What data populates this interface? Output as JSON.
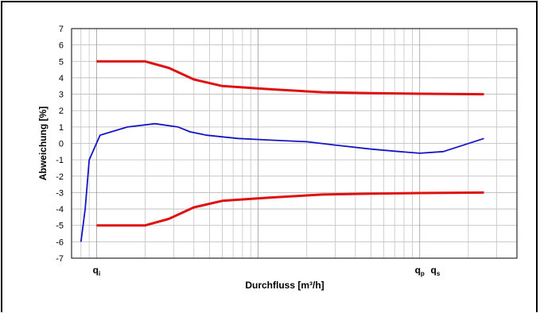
{
  "chart_data": {
    "type": "line",
    "title": "",
    "xlabel": "Durchfluss [m³/h]",
    "ylabel": "Abweichung [%]",
    "x_scale": "log",
    "ylim": [
      -7,
      7
    ],
    "y_ticks": [
      7,
      6,
      5,
      4,
      3,
      2,
      1,
      0,
      -1,
      -2,
      -3,
      -4,
      -5,
      -6,
      -7
    ],
    "x_markers": [
      {
        "main": "q",
        "sub": "i",
        "x": 1
      },
      {
        "main": "q",
        "sub": "p",
        "x": 100
      },
      {
        "main": "q",
        "sub": "s",
        "x": 125
      }
    ],
    "grid": true,
    "legend": "none",
    "series": [
      {
        "color": "#e01010",
        "x": [
          1.0,
          2.0,
          2.8,
          4.0,
          6.0,
          12.0,
          25.0,
          50.0,
          100.0,
          250.0
        ],
        "values": [
          5,
          5,
          4.6,
          3.9,
          3.5,
          3.3,
          3.12,
          3.06,
          3.03,
          3.0
        ]
      },
      {
        "color": "#e01010",
        "x": [
          1.0,
          2.0,
          2.8,
          4.0,
          6.0,
          12.0,
          25.0,
          50.0,
          100.0,
          250.0
        ],
        "values": [
          -5,
          -5,
          -4.6,
          -3.9,
          -3.5,
          -3.3,
          -3.12,
          -3.06,
          -3.03,
          -3.0
        ]
      },
      {
        "color": "#1515c8",
        "x": [
          0.8,
          0.85,
          0.9,
          1.05,
          1.55,
          2.3,
          3.2,
          3.8,
          4.8,
          7.5,
          12.0,
          20.0,
          30.0,
          50.0,
          75.0,
          100.0,
          140.0,
          250.0
        ],
        "values": [
          -6,
          -4,
          -1,
          0.5,
          1.0,
          1.2,
          1.0,
          0.7,
          0.5,
          0.3,
          0.2,
          0.1,
          -0.1,
          -0.35,
          -0.5,
          -0.6,
          -0.5,
          0.3
        ]
      }
    ]
  }
}
